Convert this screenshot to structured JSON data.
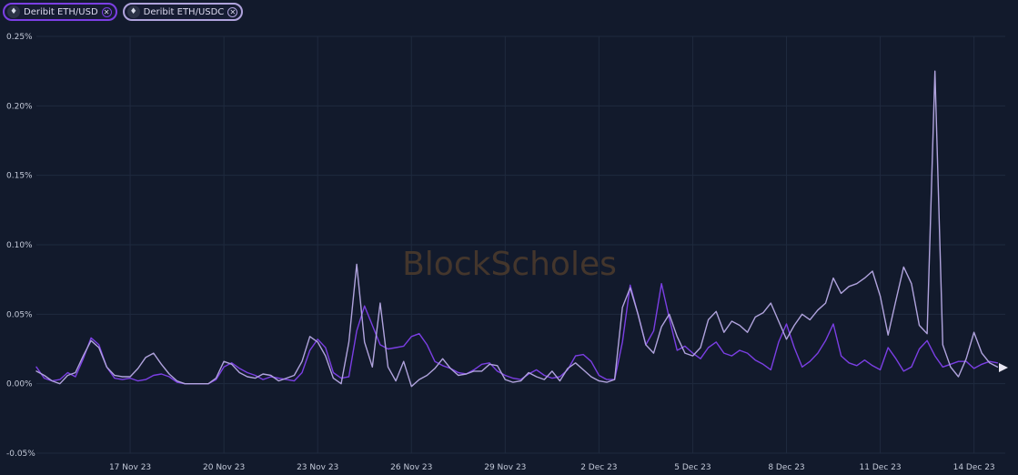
{
  "legend": [
    {
      "label": "Deribit ETH/USD",
      "color": "#7b3fe4",
      "icon": "ethereum-icon",
      "close_icon": "close-circle-icon"
    },
    {
      "label": "Deribit ETH/USDC",
      "color": "#b0a3dd",
      "icon": "ethereum-icon",
      "close_icon": "close-circle-icon"
    }
  ],
  "watermark": "BlockScholes",
  "chart_data": {
    "type": "line",
    "x_range": [
      "2023-11-14",
      "2023-12-15"
    ],
    "y_range": [
      -0.05,
      0.25
    ],
    "y_unit": "%",
    "y_ticks": [
      {
        "value": 0.25,
        "label": "0.25%"
      },
      {
        "value": 0.2,
        "label": "0.20%"
      },
      {
        "value": 0.15,
        "label": "0.15%"
      },
      {
        "value": 0.1,
        "label": "0.10%"
      },
      {
        "value": 0.05,
        "label": "0.05%"
      },
      {
        "value": 0.0,
        "label": "0.00%"
      },
      {
        "value": -0.05,
        "label": "-0.05%"
      }
    ],
    "x_ticks": [
      {
        "date": "2023-11-17",
        "label": "17 Nov 23"
      },
      {
        "date": "2023-11-20",
        "label": "20 Nov 23"
      },
      {
        "date": "2023-11-23",
        "label": "23 Nov 23"
      },
      {
        "date": "2023-11-26",
        "label": "26 Nov 23"
      },
      {
        "date": "2023-11-29",
        "label": "29 Nov 23"
      },
      {
        "date": "2023-12-02",
        "label": "2 Dec 23"
      },
      {
        "date": "2023-12-05",
        "label": "5 Dec 23"
      },
      {
        "date": "2023-12-08",
        "label": "8 Dec 23"
      },
      {
        "date": "2023-12-11",
        "label": "11 Dec 23"
      },
      {
        "date": "2023-12-14",
        "label": "14 Dec 23"
      }
    ],
    "grid": true,
    "series": [
      {
        "name": "Deribit ETH/USD",
        "color": "#7b3fe4",
        "x": [
          "2023-11-14T00:00",
          "2023-11-14T06:00",
          "2023-11-14T12:00",
          "2023-11-14T18:00",
          "2023-11-15T00:00",
          "2023-11-15T06:00",
          "2023-11-15T12:00",
          "2023-11-15T18:00",
          "2023-11-16T00:00",
          "2023-11-16T06:00",
          "2023-11-16T12:00",
          "2023-11-16T18:00",
          "2023-11-17T00:00",
          "2023-11-17T06:00",
          "2023-11-17T12:00",
          "2023-11-17T18:00",
          "2023-11-18T00:00",
          "2023-11-18T06:00",
          "2023-11-18T12:00",
          "2023-11-18T18:00",
          "2023-11-19T00:00",
          "2023-11-19T06:00",
          "2023-11-19T12:00",
          "2023-11-19T18:00",
          "2023-11-20T00:00",
          "2023-11-20T06:00",
          "2023-11-20T12:00",
          "2023-11-20T18:00",
          "2023-11-21T00:00",
          "2023-11-21T06:00",
          "2023-11-21T12:00",
          "2023-11-21T18:00",
          "2023-11-22T00:00",
          "2023-11-22T06:00",
          "2023-11-22T12:00",
          "2023-11-22T18:00",
          "2023-11-23T00:00",
          "2023-11-23T06:00",
          "2023-11-23T12:00",
          "2023-11-23T18:00",
          "2023-11-24T00:00",
          "2023-11-24T06:00",
          "2023-11-24T12:00",
          "2023-11-24T18:00",
          "2023-11-25T00:00",
          "2023-11-25T06:00",
          "2023-11-25T12:00",
          "2023-11-25T18:00",
          "2023-11-26T00:00",
          "2023-11-26T06:00",
          "2023-11-26T12:00",
          "2023-11-26T18:00",
          "2023-11-27T00:00",
          "2023-11-27T06:00",
          "2023-11-27T12:00",
          "2023-11-27T18:00",
          "2023-11-28T00:00",
          "2023-11-28T06:00",
          "2023-11-28T12:00",
          "2023-11-28T18:00",
          "2023-11-29T00:00",
          "2023-11-29T06:00",
          "2023-11-29T12:00",
          "2023-11-29T18:00",
          "2023-11-30T00:00",
          "2023-11-30T06:00",
          "2023-11-30T12:00",
          "2023-11-30T18:00",
          "2023-12-01T00:00",
          "2023-12-01T06:00",
          "2023-12-01T12:00",
          "2023-12-01T18:00",
          "2023-12-02T00:00",
          "2023-12-02T06:00",
          "2023-12-02T12:00",
          "2023-12-02T18:00",
          "2023-12-03T00:00",
          "2023-12-03T06:00",
          "2023-12-03T12:00",
          "2023-12-03T18:00",
          "2023-12-04T00:00",
          "2023-12-04T06:00",
          "2023-12-04T12:00",
          "2023-12-04T18:00",
          "2023-12-05T00:00",
          "2023-12-05T06:00",
          "2023-12-05T12:00",
          "2023-12-05T18:00",
          "2023-12-06T00:00",
          "2023-12-06T06:00",
          "2023-12-06T12:00",
          "2023-12-06T18:00",
          "2023-12-07T00:00",
          "2023-12-07T06:00",
          "2023-12-07T12:00",
          "2023-12-07T18:00",
          "2023-12-08T00:00",
          "2023-12-08T06:00",
          "2023-12-08T12:00",
          "2023-12-08T18:00",
          "2023-12-09T00:00",
          "2023-12-09T06:00",
          "2023-12-09T12:00",
          "2023-12-09T18:00",
          "2023-12-10T00:00",
          "2023-12-10T06:00",
          "2023-12-10T12:00",
          "2023-12-10T18:00",
          "2023-12-11T00:00",
          "2023-12-11T06:00",
          "2023-12-11T12:00",
          "2023-12-11T18:00",
          "2023-12-12T00:00",
          "2023-12-12T06:00",
          "2023-12-12T12:00",
          "2023-12-12T18:00",
          "2023-12-13T00:00",
          "2023-12-13T06:00",
          "2023-12-13T12:00",
          "2023-12-13T18:00",
          "2023-12-14T00:00",
          "2023-12-14T06:00",
          "2023-12-14T12:00",
          "2023-12-14T18:00"
        ],
        "values": [
          0.012,
          0.004,
          0.002,
          0.003,
          0.008,
          0.005,
          0.018,
          0.033,
          0.028,
          0.012,
          0.004,
          0.003,
          0.004,
          0.002,
          0.003,
          0.006,
          0.007,
          0.005,
          0.001,
          0.0,
          0.0,
          0.0,
          0.0,
          0.003,
          0.012,
          0.015,
          0.011,
          0.008,
          0.006,
          0.003,
          0.005,
          0.004,
          0.003,
          0.002,
          0.008,
          0.024,
          0.032,
          0.026,
          0.008,
          0.004,
          0.005,
          0.038,
          0.056,
          0.042,
          0.028,
          0.025,
          0.026,
          0.027,
          0.034,
          0.036,
          0.028,
          0.016,
          0.013,
          0.011,
          0.008,
          0.007,
          0.01,
          0.014,
          0.015,
          0.009,
          0.006,
          0.004,
          0.003,
          0.007,
          0.01,
          0.006,
          0.004,
          0.005,
          0.01,
          0.02,
          0.021,
          0.016,
          0.006,
          0.003,
          0.003,
          0.03,
          0.071,
          0.05,
          0.028,
          0.038,
          0.072,
          0.047,
          0.024,
          0.027,
          0.022,
          0.018,
          0.026,
          0.03,
          0.022,
          0.02,
          0.024,
          0.022,
          0.017,
          0.014,
          0.01,
          0.03,
          0.043,
          0.026,
          0.012,
          0.016,
          0.022,
          0.031,
          0.043,
          0.02,
          0.015,
          0.013,
          0.017,
          0.013,
          0.01,
          0.026,
          0.018,
          0.009,
          0.012,
          0.025,
          0.031,
          0.02,
          0.012,
          0.014,
          0.016,
          0.016,
          0.011,
          0.014,
          0.016,
          0.015
        ]
      },
      {
        "name": "Deribit ETH/USDC",
        "color": "#b0a3dd",
        "x": [
          "2023-11-14T00:00",
          "2023-11-14T06:00",
          "2023-11-14T12:00",
          "2023-11-14T18:00",
          "2023-11-15T00:00",
          "2023-11-15T06:00",
          "2023-11-15T12:00",
          "2023-11-15T18:00",
          "2023-11-16T00:00",
          "2023-11-16T06:00",
          "2023-11-16T12:00",
          "2023-11-16T18:00",
          "2023-11-17T00:00",
          "2023-11-17T06:00",
          "2023-11-17T12:00",
          "2023-11-17T18:00",
          "2023-11-18T00:00",
          "2023-11-18T06:00",
          "2023-11-18T12:00",
          "2023-11-18T18:00",
          "2023-11-19T00:00",
          "2023-11-19T06:00",
          "2023-11-19T12:00",
          "2023-11-19T18:00",
          "2023-11-20T00:00",
          "2023-11-20T06:00",
          "2023-11-20T12:00",
          "2023-11-20T18:00",
          "2023-11-21T00:00",
          "2023-11-21T06:00",
          "2023-11-21T12:00",
          "2023-11-21T18:00",
          "2023-11-22T00:00",
          "2023-11-22T06:00",
          "2023-11-22T12:00",
          "2023-11-22T18:00",
          "2023-11-23T00:00",
          "2023-11-23T06:00",
          "2023-11-23T12:00",
          "2023-11-23T18:00",
          "2023-11-24T00:00",
          "2023-11-24T06:00",
          "2023-11-24T12:00",
          "2023-11-24T18:00",
          "2023-11-25T00:00",
          "2023-11-25T06:00",
          "2023-11-25T12:00",
          "2023-11-25T18:00",
          "2023-11-26T00:00",
          "2023-11-26T06:00",
          "2023-11-26T12:00",
          "2023-11-26T18:00",
          "2023-11-27T00:00",
          "2023-11-27T06:00",
          "2023-11-27T12:00",
          "2023-11-27T18:00",
          "2023-11-28T00:00",
          "2023-11-28T06:00",
          "2023-11-28T12:00",
          "2023-11-28T18:00",
          "2023-11-29T00:00",
          "2023-11-29T06:00",
          "2023-11-29T12:00",
          "2023-11-29T18:00",
          "2023-11-30T00:00",
          "2023-11-30T06:00",
          "2023-11-30T12:00",
          "2023-11-30T18:00",
          "2023-12-01T00:00",
          "2023-12-01T06:00",
          "2023-12-01T12:00",
          "2023-12-01T18:00",
          "2023-12-02T00:00",
          "2023-12-02T06:00",
          "2023-12-02T12:00",
          "2023-12-02T18:00",
          "2023-12-03T00:00",
          "2023-12-03T06:00",
          "2023-12-03T12:00",
          "2023-12-03T18:00",
          "2023-12-04T00:00",
          "2023-12-04T06:00",
          "2023-12-04T12:00",
          "2023-12-04T18:00",
          "2023-12-05T00:00",
          "2023-12-05T06:00",
          "2023-12-05T12:00",
          "2023-12-05T18:00",
          "2023-12-06T00:00",
          "2023-12-06T06:00",
          "2023-12-06T12:00",
          "2023-12-06T18:00",
          "2023-12-07T00:00",
          "2023-12-07T06:00",
          "2023-12-07T12:00",
          "2023-12-07T18:00",
          "2023-12-08T00:00",
          "2023-12-08T06:00",
          "2023-12-08T12:00",
          "2023-12-08T18:00",
          "2023-12-09T00:00",
          "2023-12-09T06:00",
          "2023-12-09T12:00",
          "2023-12-09T18:00",
          "2023-12-10T00:00",
          "2023-12-10T06:00",
          "2023-12-10T12:00",
          "2023-12-10T18:00",
          "2023-12-11T00:00",
          "2023-12-11T06:00",
          "2023-12-11T12:00",
          "2023-12-11T18:00",
          "2023-12-12T00:00",
          "2023-12-12T06:00",
          "2023-12-12T12:00",
          "2023-12-12T18:00",
          "2023-12-13T00:00",
          "2023-12-13T06:00",
          "2023-12-13T12:00",
          "2023-12-13T18:00",
          "2023-12-14T00:00",
          "2023-12-14T06:00",
          "2023-12-14T12:00",
          "2023-12-14T18:00"
        ],
        "values": [
          0.009,
          0.006,
          0.002,
          0.0,
          0.006,
          0.008,
          0.02,
          0.031,
          0.026,
          0.012,
          0.006,
          0.005,
          0.005,
          0.011,
          0.019,
          0.022,
          0.014,
          0.007,
          0.002,
          0.0,
          0.0,
          0.0,
          0.0,
          0.004,
          0.016,
          0.014,
          0.008,
          0.005,
          0.004,
          0.007,
          0.006,
          0.002,
          0.004,
          0.006,
          0.016,
          0.034,
          0.03,
          0.02,
          0.004,
          0.0,
          0.03,
          0.086,
          0.03,
          0.012,
          0.058,
          0.012,
          0.002,
          0.016,
          -0.002,
          0.003,
          0.006,
          0.011,
          0.018,
          0.011,
          0.006,
          0.007,
          0.009,
          0.009,
          0.014,
          0.013,
          0.003,
          0.001,
          0.002,
          0.008,
          0.005,
          0.003,
          0.009,
          0.002,
          0.011,
          0.015,
          0.01,
          0.005,
          0.002,
          0.001,
          0.003,
          0.055,
          0.069,
          0.05,
          0.028,
          0.022,
          0.041,
          0.05,
          0.034,
          0.022,
          0.02,
          0.026,
          0.046,
          0.052,
          0.037,
          0.045,
          0.042,
          0.037,
          0.048,
          0.051,
          0.058,
          0.045,
          0.032,
          0.042,
          0.05,
          0.046,
          0.053,
          0.058,
          0.076,
          0.065,
          0.07,
          0.072,
          0.076,
          0.081,
          0.063,
          0.035,
          0.06,
          0.084,
          0.072,
          0.042,
          0.036,
          0.225,
          0.028,
          0.012,
          0.005,
          0.018,
          0.037,
          0.022,
          0.015,
          0.012
        ]
      }
    ]
  }
}
